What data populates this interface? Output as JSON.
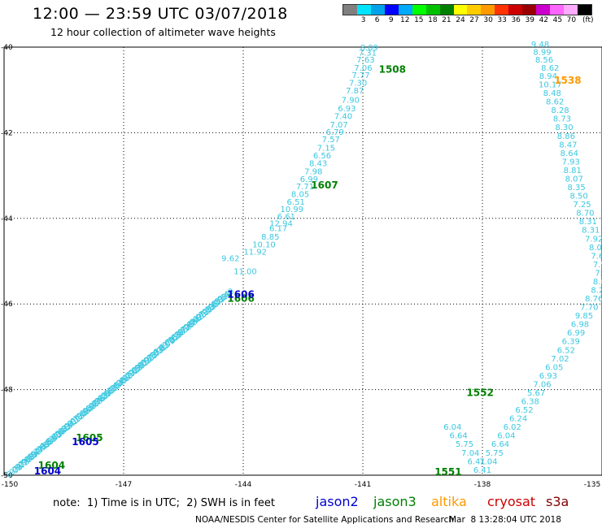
{
  "header": {
    "title": "12:00 — 23:59 UTC 03/07/2018",
    "subtitle": "12 hour collection of altimeter wave heights"
  },
  "color_scale": {
    "colors": [
      "#808080",
      "#00e5ff",
      "#00a2e8",
      "#0000ff",
      "#00aaff",
      "#00ff00",
      "#00c000",
      "#008000",
      "#ffff00",
      "#ffcc00",
      "#ff9900",
      "#ff3300",
      "#cc0000",
      "#990000",
      "#cc00cc",
      "#ff66ff",
      "#ffaaff",
      "#000000"
    ],
    "labels": [
      "3",
      "6",
      "9",
      "12",
      "15",
      "18",
      "21",
      "24",
      "27",
      "30",
      "33",
      "36",
      "39",
      "42",
      "45",
      "70"
    ],
    "unit": "(ft)"
  },
  "footer": {
    "note": "note:  1) Time is in UTC;  2) SWH is in feet",
    "credit": "NOAA/NESDIS Center for Satellite Applications and Research",
    "timestamp": "Mar  8 13:28:04 UTC 2018"
  },
  "legend": [
    {
      "name": "jason2",
      "color": "#0000cc"
    },
    {
      "name": "jason3",
      "color": "#008000"
    },
    {
      "name": "altika",
      "color": "#ff9900"
    },
    {
      "name": "cryosat",
      "color": "#cc0000"
    },
    {
      "name": "s3a",
      "color": "#800000"
    }
  ],
  "chart_data": {
    "type": "scatter",
    "title": "12 hour collection of altimeter wave heights",
    "xlabel": "",
    "ylabel": "",
    "xlim": [
      -150,
      -135
    ],
    "ylim": [
      -50,
      -40
    ],
    "x_ticks": [
      "-150",
      "-147",
      "-144",
      "-141",
      "-138",
      "-135"
    ],
    "y_ticks": [
      "-40",
      "-42",
      "-44",
      "-46",
      "-48",
      "-50"
    ],
    "grid": true,
    "series": [
      {
        "name": "jason3",
        "color": "#3cc8e0",
        "x": [
          -140.84,
          -140.88,
          -140.93,
          -140.99,
          -141.05,
          -141.12,
          -141.2,
          -141.31,
          -141.4,
          -141.49,
          -141.6,
          -141.7,
          -141.8,
          -141.92,
          -142.02,
          -142.12,
          -142.24,
          -142.35,
          -142.45,
          -142.57,
          -142.68,
          -142.78,
          -142.92,
          -143.05,
          -143.12,
          -143.32,
          -143.48,
          -143.7,
          -144.32,
          -143.95
        ],
        "y": [
          -40.08,
          -40.2,
          -40.36,
          -40.55,
          -40.72,
          -40.9,
          -41.08,
          -41.3,
          -41.5,
          -41.68,
          -41.88,
          -42.05,
          -42.22,
          -42.42,
          -42.6,
          -42.78,
          -42.97,
          -43.15,
          -43.32,
          -43.5,
          -43.68,
          -43.85,
          -44.02,
          -44.18,
          -44.3,
          -44.5,
          -44.68,
          -44.85,
          -45.0,
          -45.3
        ],
        "values": [
          8.09,
          7.31,
          7.63,
          7.06,
          7.77,
          7.3,
          7.87,
          7.9,
          6.93,
          7.4,
          7.07,
          6.79,
          7.57,
          7.15,
          6.56,
          8.43,
          7.98,
          6.99,
          7.71,
          8.05,
          6.51,
          10.99,
          6.61,
          12.94,
          6.17,
          8.85,
          10.1,
          11.92,
          9.62,
          11.0
        ]
      },
      {
        "name": "jason3-track2",
        "color": "#3cc8e0",
        "x": [
          -136.55,
          -136.5,
          -136.45,
          -136.3,
          -136.35,
          -136.3,
          -136.25,
          -136.18,
          -136.05,
          -136.0,
          -135.95,
          -135.9,
          -135.85,
          -135.82,
          -135.78,
          -135.74,
          -135.7,
          -135.64,
          -135.58,
          -135.5,
          -135.42,
          -135.35,
          -135.28,
          -135.2,
          -135.1,
          -135.05,
          -135.0,
          -134.95,
          -135.0,
          -135.05,
          -135.2,
          -135.32,
          -135.45,
          -135.55,
          -135.65,
          -135.78,
          -135.9,
          -136.05,
          -136.2,
          -136.35,
          -136.5,
          -136.65,
          -136.8,
          -136.95,
          -137.1,
          -137.25,
          -137.4,
          -137.55,
          -137.7,
          -137.85,
          -138.0,
          -138.15,
          -138.3,
          -138.45,
          -138.6,
          -138.75
        ],
        "y": [
          -40.0,
          -40.18,
          -40.36,
          -40.55,
          -40.74,
          -40.94,
          -41.14,
          -41.34,
          -41.54,
          -41.74,
          -41.94,
          -42.14,
          -42.34,
          -42.54,
          -42.74,
          -42.94,
          -43.14,
          -43.34,
          -43.54,
          -43.74,
          -43.94,
          -44.14,
          -44.34,
          -44.54,
          -44.74,
          -44.94,
          -45.14,
          -45.34,
          -45.54,
          -45.74,
          -45.94,
          -46.14,
          -46.34,
          -46.54,
          -46.74,
          -46.94,
          -47.14,
          -47.34,
          -47.54,
          -47.74,
          -47.94,
          -48.14,
          -48.34,
          -48.54,
          -48.74,
          -48.94,
          -49.14,
          -49.34,
          -49.54,
          -49.74,
          -49.94,
          -49.74,
          -49.54,
          -49.34,
          -49.14,
          -48.94
        ],
        "values": [
          9.48,
          8.99,
          8.56,
          8.62,
          8.94,
          10.17,
          8.48,
          8.62,
          8.28,
          8.73,
          8.3,
          8.86,
          8.47,
          8.64,
          7.93,
          8.81,
          8.07,
          8.35,
          8.5,
          7.25,
          8.7,
          8.31,
          8.31,
          7.92,
          8.03,
          7.6,
          7.5,
          7.4,
          8.66,
          8.24,
          8.76,
          7.7,
          9.85,
          6.98,
          6.99,
          6.39,
          6.52,
          7.02,
          6.05,
          6.93,
          7.06,
          5.67,
          6.38,
          6.52,
          6.24,
          6.02,
          6.04,
          6.64,
          5.75,
          7.04,
          6.41,
          6.41,
          7.04,
          5.75,
          6.64,
          6.04
        ]
      }
    ],
    "annotations": [
      {
        "text": "1508",
        "x": -140.6,
        "y": -40.6,
        "color": "#008000"
      },
      {
        "text": "1538",
        "x": -136.2,
        "y": -40.85,
        "color": "#ff9900"
      },
      {
        "text": "1607",
        "x": -142.3,
        "y": -43.3,
        "color": "#008000"
      },
      {
        "text": "1606",
        "x": -144.4,
        "y": -45.95,
        "color": "#008000"
      },
      {
        "text": "1606",
        "x": -144.4,
        "y": -45.85,
        "color": "#0000cc"
      },
      {
        "text": "1605",
        "x": -148.2,
        "y": -49.2,
        "color": "#008000"
      },
      {
        "text": "1605",
        "x": -148.3,
        "y": -49.3,
        "color": "#0000cc"
      },
      {
        "text": "1604",
        "x": -149.15,
        "y": -49.85,
        "color": "#008000"
      },
      {
        "text": "1604",
        "x": -149.25,
        "y": -49.98,
        "color": "#0000cc"
      },
      {
        "text": "1552",
        "x": -138.4,
        "y": -48.15,
        "color": "#008000"
      },
      {
        "text": "1551",
        "x": -139.2,
        "y": -50.0,
        "color": "#008000"
      },
      {
        "text": "15",
        "x": -135.0,
        "y": -44.6,
        "color": "#ff9900"
      }
    ]
  }
}
